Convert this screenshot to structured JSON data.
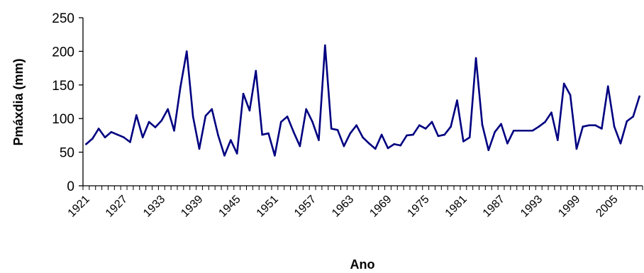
{
  "chart_data": {
    "type": "line",
    "title": "",
    "xlabel": "Ano",
    "ylabel": "Pmáxdia (mm)",
    "ylim": [
      0,
      250
    ],
    "yticks": [
      0,
      50,
      100,
      150,
      200,
      250
    ],
    "xlim": [
      1921,
      2009
    ],
    "xtick_labels": [
      "1921",
      "1927",
      "1933",
      "1939",
      "1945",
      "1951",
      "1957",
      "1963",
      "1969",
      "1975",
      "1981",
      "1987",
      "1993",
      "1999",
      "2005"
    ],
    "grid": false,
    "legend": "none",
    "line_color": "#000080",
    "x": [
      1921,
      1922,
      1923,
      1924,
      1925,
      1926,
      1927,
      1928,
      1929,
      1930,
      1931,
      1932,
      1933,
      1934,
      1935,
      1936,
      1937,
      1938,
      1939,
      1940,
      1941,
      1942,
      1943,
      1944,
      1945,
      1946,
      1947,
      1948,
      1949,
      1950,
      1951,
      1952,
      1953,
      1954,
      1955,
      1956,
      1957,
      1958,
      1959,
      1960,
      1961,
      1962,
      1963,
      1964,
      1965,
      1966,
      1967,
      1968,
      1969,
      1970,
      1971,
      1972,
      1973,
      1974,
      1975,
      1976,
      1977,
      1978,
      1979,
      1980,
      1981,
      1982,
      1983,
      1984,
      1985,
      1986,
      1987,
      1988,
      1989,
      1990,
      1991,
      1992,
      1993,
      1994,
      1995,
      1996,
      1997,
      1998,
      1999,
      2000,
      2001,
      2002,
      2003,
      2004,
      2005,
      2006,
      2007,
      2008,
      2009
    ],
    "values": [
      62,
      70,
      85,
      72,
      80,
      76,
      72,
      65,
      105,
      72,
      95,
      87,
      97,
      114,
      82,
      147,
      200,
      103,
      55,
      104,
      114,
      75,
      45,
      68,
      48,
      137,
      112,
      171,
      76,
      78,
      45,
      95,
      103,
      80,
      59,
      114,
      95,
      68,
      209,
      85,
      83,
      59,
      78,
      90,
      72,
      63,
      55,
      76,
      56,
      62,
      60,
      75,
      76,
      90,
      85,
      95,
      74,
      76,
      88,
      127,
      66,
      72,
      190,
      91,
      53,
      80,
      92,
      63,
      82,
      82,
      82,
      82,
      88,
      95,
      109,
      68,
      152,
      135,
      55,
      88,
      90,
      90,
      85,
      148,
      88,
      63,
      96,
      103,
      133
    ]
  }
}
